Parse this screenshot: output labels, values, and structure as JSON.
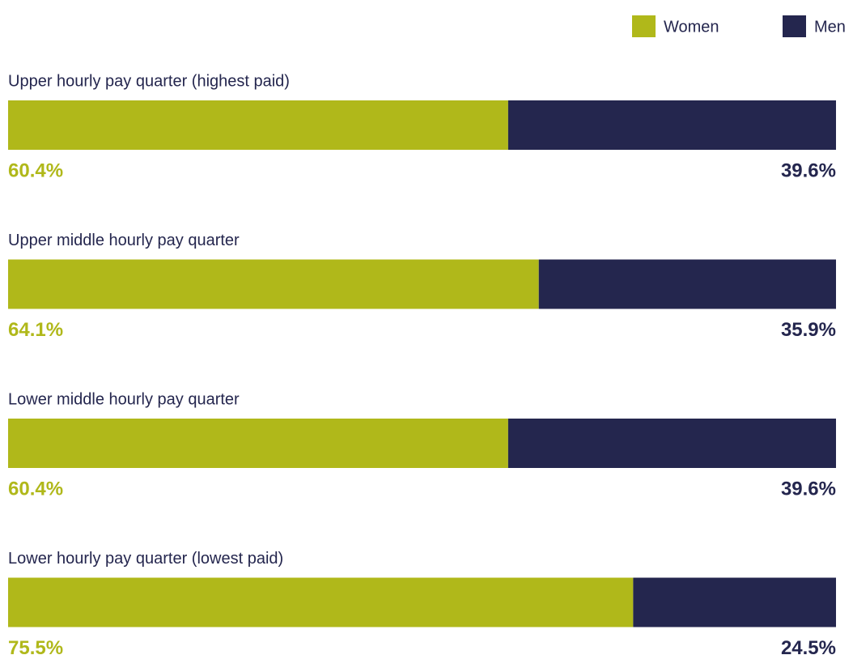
{
  "chart_data": {
    "type": "stacked-bar-horizontal",
    "categories": [
      "Upper hourly pay quarter (highest paid)",
      "Upper middle hourly pay quarter",
      "Lower middle hourly pay quarter",
      "Lower hourly pay quarter (lowest paid)"
    ],
    "series": [
      {
        "name": "Women",
        "color": "#b0b81a",
        "values": [
          60.4,
          64.1,
          60.4,
          75.5
        ],
        "value_labels": [
          "60.4%",
          "64.1%",
          "60.4%",
          "75.5%"
        ]
      },
      {
        "name": "Men",
        "color": "#24264e",
        "values": [
          39.6,
          35.9,
          39.6,
          24.5
        ],
        "value_labels": [
          "39.6%",
          "35.9%",
          "39.6%",
          "24.5%"
        ]
      }
    ],
    "legend": "top-right"
  }
}
